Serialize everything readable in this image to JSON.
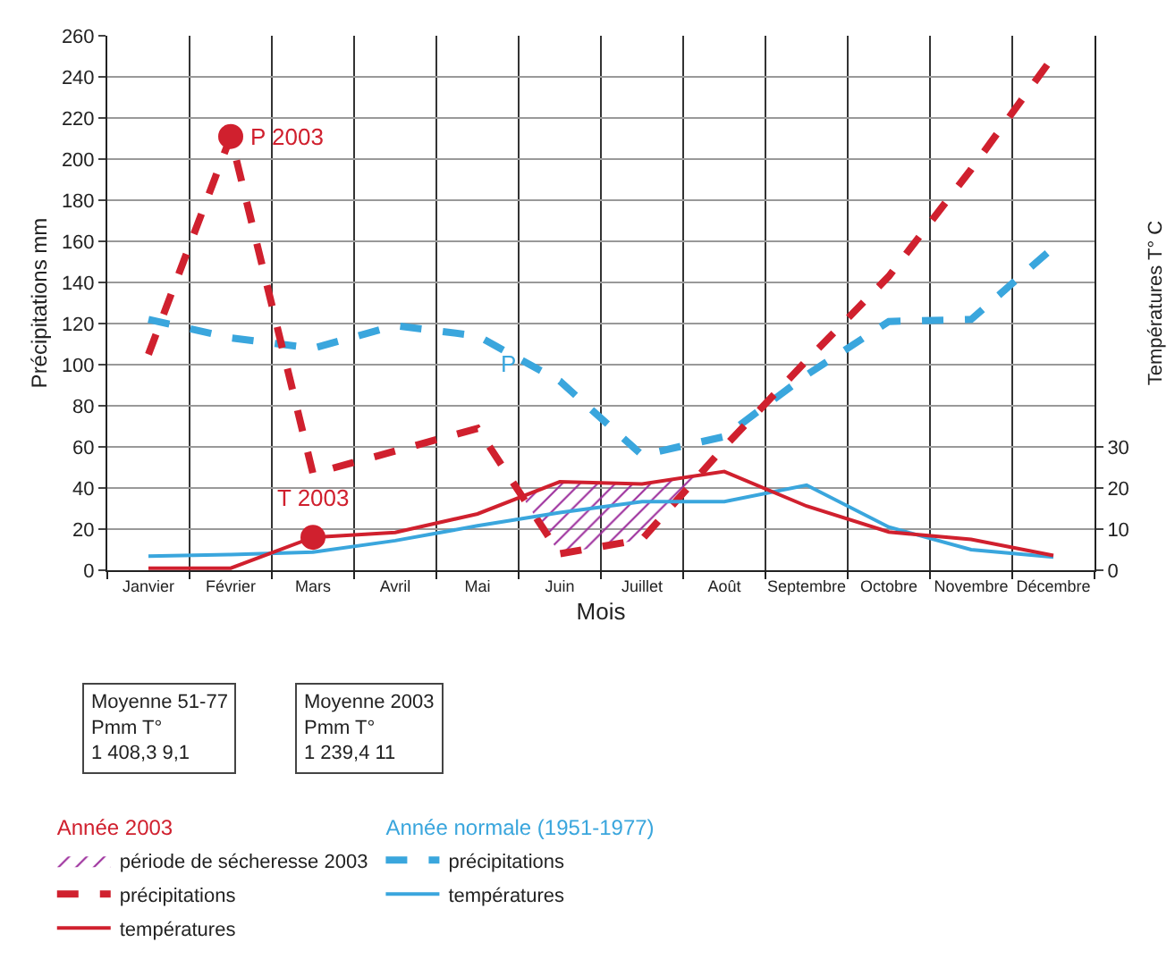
{
  "chart_data": {
    "type": "line",
    "xlabel": "Mois",
    "ylabel": "Précipitations mm",
    "y2label": "Températures T° C",
    "categories": [
      "Janvier",
      "Février",
      "Mars",
      "Avril",
      "Mai",
      "Juin",
      "Juillet",
      "Août",
      "Septembre",
      "Octobre",
      "Novembre",
      "Décembre"
    ],
    "series": [
      {
        "name": "précipitations",
        "color": "#3aa6dd",
        "line_style": "dashed",
        "values": [
          122,
          113,
          108,
          119,
          114,
          92,
          56,
          65,
          95,
          121,
          122,
          157
        ]
      },
      {
        "name": "températures",
        "color": "#3aa6dd",
        "line_style": "solid",
        "axis": "y2",
        "values": [
          3.4,
          3.8,
          4.4,
          7.2,
          10.8,
          14,
          16.7,
          16.7,
          20.7,
          10.5,
          5,
          3.2
        ]
      },
      {
        "name": "précipitations",
        "color": "#d0202e",
        "line_style": "dashed",
        "values": [
          105,
          211,
          47,
          58,
          69,
          8,
          15,
          60,
          102,
          143,
          195,
          250
        ]
      },
      {
        "name": "températures",
        "color": "#d0202e",
        "line_style": "solid",
        "axis": "y2",
        "values": [
          0.5,
          0.5,
          8,
          9.2,
          13.7,
          21.5,
          21,
          24,
          15.6,
          9.3,
          7.5,
          3.6
        ]
      }
    ],
    "ylim": [
      0,
      260
    ],
    "yticks": [
      0,
      20,
      40,
      60,
      80,
      100,
      120,
      140,
      160,
      180,
      200,
      220,
      240,
      260
    ],
    "y2lim": [
      0,
      130
    ],
    "y2ticks": [
      0,
      10,
      20,
      30
    ],
    "annotations": [
      {
        "text": "P 2003",
        "x": "Février",
        "y": 211
      },
      {
        "text": "T 2003",
        "x": "Mars",
        "y": 16
      },
      {
        "text": "P",
        "x": "Juin",
        "y": 97
      },
      "Moyenne 51-77\nPmm T°\n1 408,3 9,1",
      "Moyenne 2003\nPmm T°\n1 239,4 11",
      "Année normale (1951-1977)",
      "Année 2003",
      "période de sécheresse 2003"
    ],
    "grid": true,
    "legend": "bottom",
    "marker": "none"
  }
}
